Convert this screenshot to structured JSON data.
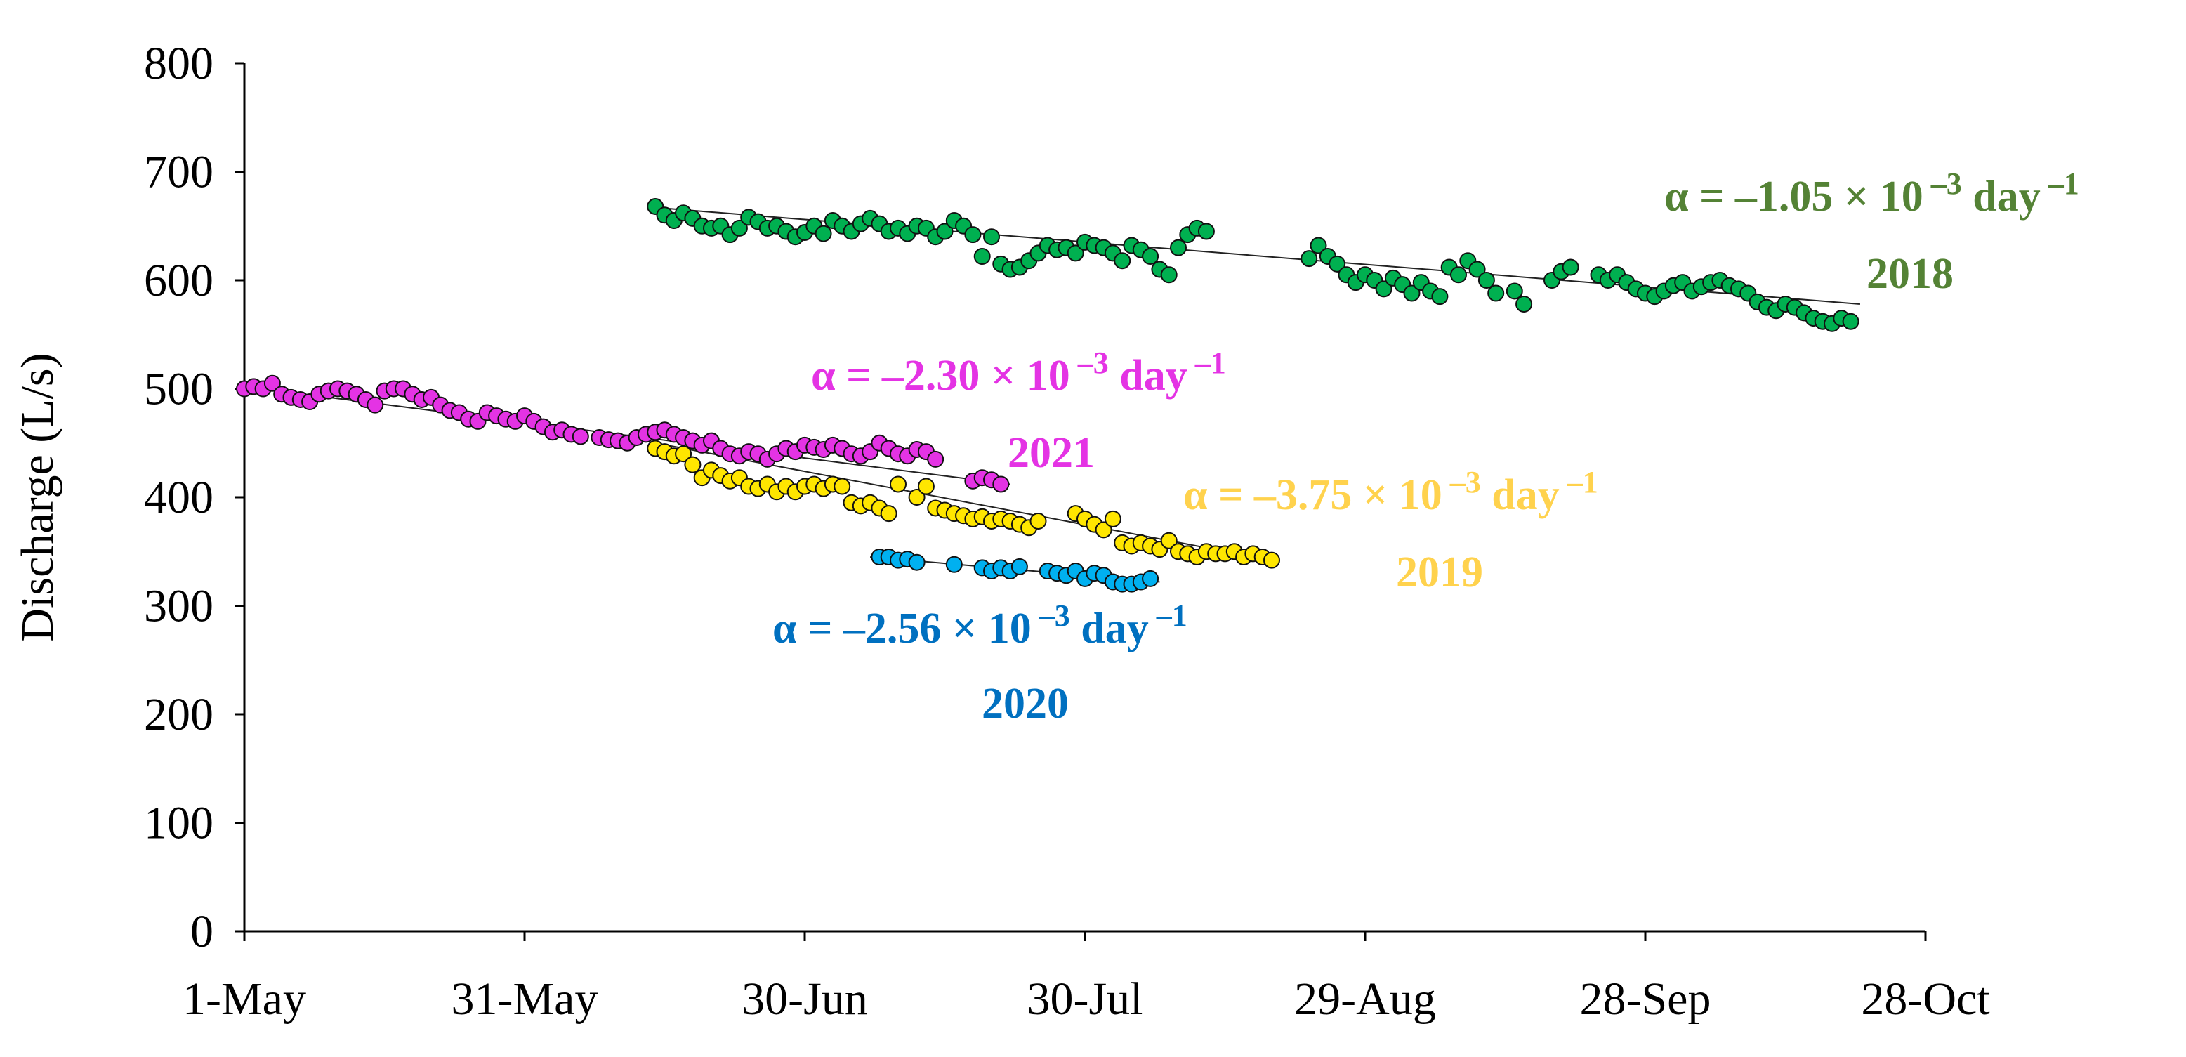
{
  "chart_data": {
    "type": "scatter",
    "title": "",
    "xlabel": "",
    "ylabel": "Discharge (L/s)",
    "x_unit": "day of year (day 0 = 1-May)",
    "xlim": [
      0,
      180
    ],
    "ylim": [
      0,
      800
    ],
    "yticks": [
      0,
      100,
      200,
      300,
      400,
      500,
      600,
      700,
      800
    ],
    "xticks": [
      {
        "day": 0,
        "label": "1-May"
      },
      {
        "day": 30,
        "label": "31-May"
      },
      {
        "day": 60,
        "label": "30-Jun"
      },
      {
        "day": 90,
        "label": "30-Jul"
      },
      {
        "day": 120,
        "label": "29-Aug"
      },
      {
        "day": 150,
        "label": "28-Sep"
      },
      {
        "day": 180,
        "label": "28-Oct"
      }
    ],
    "grid": false,
    "series": [
      {
        "name": "2018",
        "color": "#00b050",
        "label_color": "#548235",
        "alpha_text": "α = –1.05 × 10 –3 day –1",
        "alpha_prefix": "α = –1.05 × 10",
        "alpha_exp": "–3",
        "alpha_unit": " day",
        "alpha_unit_exp": "–1",
        "year_label": "2018",
        "trend": {
          "x0": 44,
          "y0": 667,
          "x1": 173,
          "y1": 578
        },
        "points": [
          [
            44,
            668
          ],
          [
            45,
            660
          ],
          [
            46,
            655
          ],
          [
            47,
            662
          ],
          [
            48,
            657
          ],
          [
            49,
            650
          ],
          [
            50,
            648
          ],
          [
            51,
            650
          ],
          [
            52,
            642
          ],
          [
            53,
            648
          ],
          [
            54,
            658
          ],
          [
            55,
            654
          ],
          [
            56,
            648
          ],
          [
            57,
            650
          ],
          [
            58,
            645
          ],
          [
            59,
            640
          ],
          [
            60,
            644
          ],
          [
            61,
            650
          ],
          [
            62,
            643
          ],
          [
            63,
            655
          ],
          [
            64,
            650
          ],
          [
            65,
            645
          ],
          [
            66,
            652
          ],
          [
            67,
            657
          ],
          [
            68,
            652
          ],
          [
            69,
            645
          ],
          [
            70,
            648
          ],
          [
            71,
            643
          ],
          [
            72,
            650
          ],
          [
            73,
            648
          ],
          [
            74,
            640
          ],
          [
            75,
            645
          ],
          [
            76,
            655
          ],
          [
            77,
            650
          ],
          [
            78,
            642
          ],
          [
            79,
            622
          ],
          [
            80,
            640
          ],
          [
            81,
            615
          ],
          [
            82,
            610
          ],
          [
            83,
            612
          ],
          [
            84,
            618
          ],
          [
            85,
            625
          ],
          [
            86,
            632
          ],
          [
            87,
            628
          ],
          [
            88,
            630
          ],
          [
            89,
            625
          ],
          [
            90,
            635
          ],
          [
            91,
            632
          ],
          [
            92,
            630
          ],
          [
            93,
            625
          ],
          [
            94,
            618
          ],
          [
            95,
            632
          ],
          [
            96,
            628
          ],
          [
            97,
            622
          ],
          [
            98,
            610
          ],
          [
            99,
            605
          ],
          [
            100,
            630
          ],
          [
            101,
            642
          ],
          [
            102,
            648
          ],
          [
            103,
            645
          ],
          [
            114,
            620
          ],
          [
            115,
            632
          ],
          [
            116,
            622
          ],
          [
            117,
            615
          ],
          [
            118,
            605
          ],
          [
            119,
            598
          ],
          [
            120,
            605
          ],
          [
            121,
            600
          ],
          [
            122,
            592
          ],
          [
            123,
            602
          ],
          [
            124,
            596
          ],
          [
            125,
            588
          ],
          [
            126,
            598
          ],
          [
            127,
            590
          ],
          [
            128,
            585
          ],
          [
            129,
            612
          ],
          [
            130,
            605
          ],
          [
            131,
            618
          ],
          [
            132,
            610
          ],
          [
            133,
            600
          ],
          [
            134,
            588
          ],
          [
            136,
            590
          ],
          [
            137,
            578
          ],
          [
            140,
            600
          ],
          [
            141,
            608
          ],
          [
            142,
            612
          ],
          [
            145,
            605
          ],
          [
            146,
            600
          ],
          [
            147,
            605
          ],
          [
            148,
            598
          ],
          [
            149,
            592
          ],
          [
            150,
            588
          ],
          [
            151,
            585
          ],
          [
            152,
            590
          ],
          [
            153,
            595
          ],
          [
            154,
            598
          ],
          [
            155,
            590
          ],
          [
            156,
            594
          ],
          [
            157,
            598
          ],
          [
            158,
            600
          ],
          [
            159,
            595
          ],
          [
            160,
            592
          ],
          [
            161,
            588
          ],
          [
            162,
            580
          ],
          [
            163,
            575
          ],
          [
            164,
            572
          ],
          [
            165,
            578
          ],
          [
            166,
            575
          ],
          [
            167,
            570
          ],
          [
            168,
            565
          ],
          [
            169,
            562
          ],
          [
            170,
            560
          ],
          [
            171,
            565
          ],
          [
            172,
            562
          ]
        ]
      },
      {
        "name": "2021",
        "color": "#e433e4",
        "label_color": "#e433e4",
        "alpha_text": "α = –2.30 × 10 –3 day –1",
        "alpha_prefix": "α = –2.30 × 10",
        "alpha_exp": "–3",
        "alpha_unit": " day",
        "alpha_unit_exp": "–1",
        "year_label": "2021",
        "trend": {
          "x0": 0,
          "y0": 502,
          "x1": 82,
          "y1": 412
        },
        "points": [
          [
            0,
            500
          ],
          [
            1,
            502
          ],
          [
            2,
            500
          ],
          [
            3,
            505
          ],
          [
            4,
            495
          ],
          [
            5,
            492
          ],
          [
            6,
            490
          ],
          [
            7,
            488
          ],
          [
            8,
            495
          ],
          [
            9,
            498
          ],
          [
            10,
            500
          ],
          [
            11,
            498
          ],
          [
            12,
            495
          ],
          [
            13,
            490
          ],
          [
            14,
            485
          ],
          [
            15,
            498
          ],
          [
            16,
            500
          ],
          [
            17,
            500
          ],
          [
            18,
            495
          ],
          [
            19,
            490
          ],
          [
            20,
            492
          ],
          [
            21,
            485
          ],
          [
            22,
            480
          ],
          [
            23,
            478
          ],
          [
            24,
            472
          ],
          [
            25,
            470
          ],
          [
            26,
            478
          ],
          [
            27,
            475
          ],
          [
            28,
            472
          ],
          [
            29,
            470
          ],
          [
            30,
            475
          ],
          [
            31,
            470
          ],
          [
            32,
            465
          ],
          [
            33,
            460
          ],
          [
            34,
            462
          ],
          [
            35,
            458
          ],
          [
            36,
            456
          ],
          [
            38,
            455
          ],
          [
            39,
            453
          ],
          [
            40,
            452
          ],
          [
            41,
            450
          ],
          [
            42,
            455
          ],
          [
            43,
            458
          ],
          [
            44,
            460
          ],
          [
            45,
            462
          ],
          [
            46,
            458
          ],
          [
            47,
            455
          ],
          [
            48,
            452
          ],
          [
            49,
            448
          ],
          [
            50,
            452
          ],
          [
            51,
            445
          ],
          [
            52,
            440
          ],
          [
            53,
            438
          ],
          [
            54,
            442
          ],
          [
            55,
            440
          ],
          [
            56,
            435
          ],
          [
            57,
            440
          ],
          [
            58,
            445
          ],
          [
            59,
            442
          ],
          [
            60,
            448
          ],
          [
            61,
            446
          ],
          [
            62,
            444
          ],
          [
            63,
            448
          ],
          [
            64,
            445
          ],
          [
            65,
            440
          ],
          [
            66,
            438
          ],
          [
            67,
            442
          ],
          [
            68,
            450
          ],
          [
            69,
            445
          ],
          [
            70,
            440
          ],
          [
            71,
            438
          ],
          [
            72,
            444
          ],
          [
            73,
            442
          ],
          [
            74,
            435
          ],
          [
            78,
            415
          ],
          [
            79,
            418
          ],
          [
            80,
            416
          ],
          [
            81,
            412
          ]
        ]
      },
      {
        "name": "2019",
        "color": "#ffe600",
        "label_color": "#ffd24d",
        "alpha_text": "α = –3.75 × 10 –3 day –1",
        "alpha_prefix": "α = –3.75 × 10",
        "alpha_exp": "–3",
        "alpha_unit": " day",
        "alpha_unit_exp": "–1",
        "year_label": "2019",
        "trend": {
          "x0": 44,
          "y0": 450,
          "x1": 110,
          "y1": 342
        },
        "points": [
          [
            44,
            445
          ],
          [
            45,
            442
          ],
          [
            46,
            438
          ],
          [
            47,
            440
          ],
          [
            48,
            430
          ],
          [
            49,
            418
          ],
          [
            50,
            425
          ],
          [
            51,
            420
          ],
          [
            52,
            415
          ],
          [
            53,
            418
          ],
          [
            54,
            410
          ],
          [
            55,
            408
          ],
          [
            56,
            412
          ],
          [
            57,
            405
          ],
          [
            58,
            410
          ],
          [
            59,
            405
          ],
          [
            60,
            410
          ],
          [
            61,
            412
          ],
          [
            62,
            408
          ],
          [
            63,
            412
          ],
          [
            64,
            410
          ],
          [
            65,
            395
          ],
          [
            66,
            392
          ],
          [
            67,
            395
          ],
          [
            68,
            390
          ],
          [
            69,
            385
          ],
          [
            70,
            412
          ],
          [
            72,
            400
          ],
          [
            73,
            410
          ],
          [
            74,
            390
          ],
          [
            75,
            388
          ],
          [
            76,
            385
          ],
          [
            77,
            383
          ],
          [
            78,
            380
          ],
          [
            79,
            382
          ],
          [
            80,
            378
          ],
          [
            81,
            380
          ],
          [
            82,
            378
          ],
          [
            83,
            375
          ],
          [
            84,
            372
          ],
          [
            85,
            378
          ],
          [
            89,
            385
          ],
          [
            90,
            380
          ],
          [
            91,
            375
          ],
          [
            92,
            370
          ],
          [
            93,
            380
          ],
          [
            94,
            358
          ],
          [
            95,
            355
          ],
          [
            96,
            358
          ],
          [
            97,
            355
          ],
          [
            98,
            352
          ],
          [
            99,
            360
          ],
          [
            100,
            350
          ],
          [
            101,
            348
          ],
          [
            102,
            345
          ],
          [
            103,
            350
          ],
          [
            104,
            348
          ],
          [
            105,
            348
          ],
          [
            106,
            350
          ],
          [
            107,
            345
          ],
          [
            108,
            348
          ],
          [
            109,
            345
          ],
          [
            110,
            342
          ]
        ]
      },
      {
        "name": "2020",
        "color": "#00b0f0",
        "label_color": "#0070c0",
        "alpha_text": "α = –2.56 × 10 –3 day –1",
        "alpha_prefix": "α = –2.56 × 10",
        "alpha_exp": "–3",
        "alpha_unit": " day",
        "alpha_unit_exp": "–1",
        "year_label": "2020",
        "trend": {
          "x0": 67,
          "y0": 345,
          "x1": 98,
          "y1": 322
        },
        "points": [
          [
            68,
            345
          ],
          [
            69,
            345
          ],
          [
            70,
            342
          ],
          [
            71,
            343
          ],
          [
            72,
            340
          ],
          [
            76,
            338
          ],
          [
            79,
            335
          ],
          [
            80,
            332
          ],
          [
            81,
            335
          ],
          [
            82,
            332
          ],
          [
            83,
            336
          ],
          [
            86,
            332
          ],
          [
            87,
            330
          ],
          [
            88,
            328
          ],
          [
            89,
            332
          ],
          [
            90,
            325
          ],
          [
            91,
            330
          ],
          [
            92,
            328
          ],
          [
            93,
            322
          ],
          [
            94,
            320
          ],
          [
            95,
            320
          ],
          [
            96,
            322
          ],
          [
            97,
            325
          ]
        ]
      }
    ]
  }
}
